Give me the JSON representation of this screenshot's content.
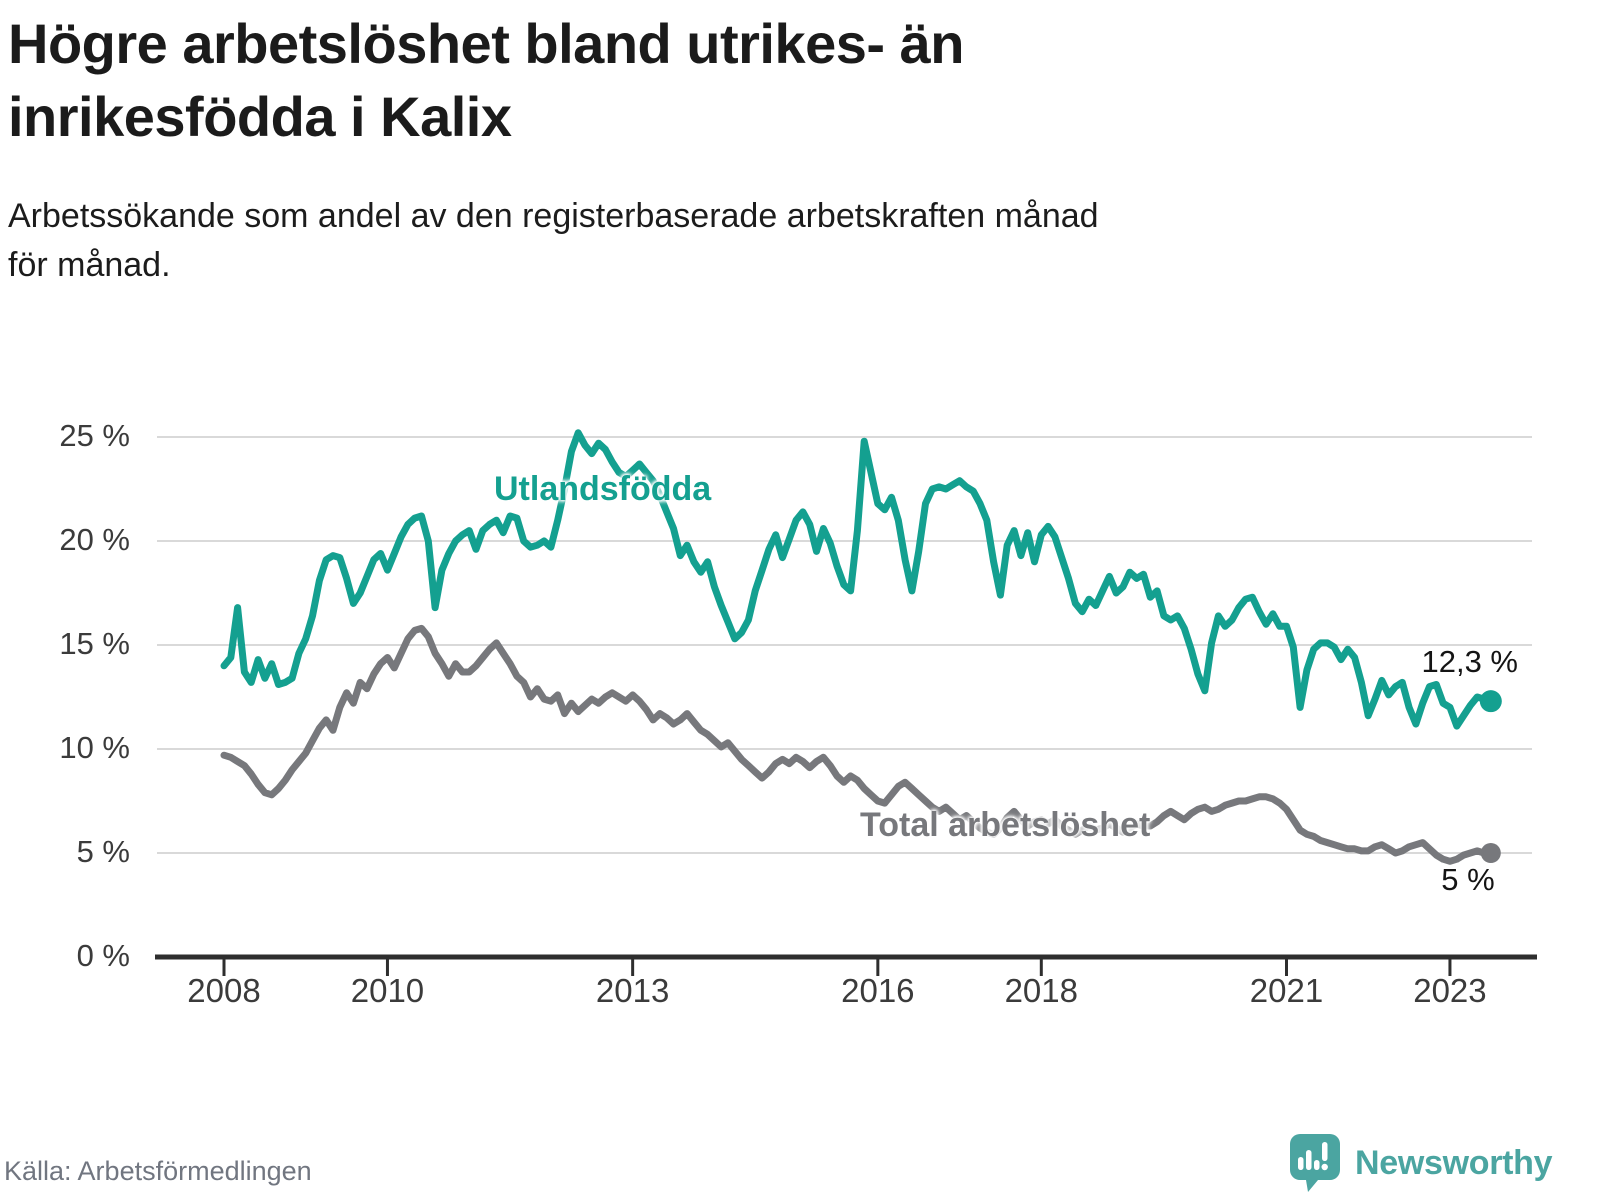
{
  "title": "Högre arbetslöshet bland utrikes- än\ninrikesfödda i Kalix",
  "subtitle": "Arbetssökande som andel av den registerbaserade arbetskraften månad\nför månad.",
  "footer": {
    "source": "Källa: Arbetsförmedlingen",
    "brand_name": "Newsworthy"
  },
  "colors": {
    "background": "#ffffff",
    "title_text": "#1b1b1b",
    "axis_text": "#3b3b3b",
    "gridline": "#d9d9d9",
    "axis_line": "#2e2e2e",
    "teal_series": "#14a090",
    "gray_series": "#77787c",
    "end_label_text": "#141414",
    "source_text": "#717680",
    "brand_teal": "#4ba5a1"
  },
  "chart_data": {
    "type": "line",
    "unit": "percent",
    "frequency": "monthly",
    "start": "2008-01",
    "end": "2023-07",
    "grid": "horizontal",
    "legend_position": "inline-annotations",
    "x_tick_years": [
      2008,
      2010,
      2013,
      2016,
      2018,
      2021,
      2023
    ],
    "x_tick_labels": [
      "2008",
      "2010",
      "2013",
      "2016",
      "2018",
      "2021",
      "2023"
    ],
    "y_tick_values": [
      25,
      20,
      15,
      10,
      5,
      0
    ],
    "y_tick_labels": [
      "25 %",
      "20 %",
      "15 %",
      "10 %",
      "5 %",
      "0 %"
    ],
    "ylim": [
      0,
      26.5
    ],
    "series": [
      {
        "name": "Utlandsfödda",
        "color": "#14a090",
        "end_label": "12,3 %",
        "end_value": 12.3,
        "values": [
          14.0,
          14.4,
          16.8,
          13.7,
          13.2,
          14.3,
          13.4,
          14.1,
          13.1,
          13.2,
          13.4,
          14.6,
          15.3,
          16.4,
          18.1,
          19.1,
          19.3,
          19.2,
          18.2,
          17.0,
          17.5,
          18.3,
          19.1,
          19.4,
          18.6,
          19.4,
          20.2,
          20.8,
          21.1,
          21.2,
          20.0,
          16.8,
          18.6,
          19.4,
          20.0,
          20.3,
          20.5,
          19.6,
          20.5,
          20.8,
          21.0,
          20.4,
          21.2,
          21.1,
          20.0,
          19.7,
          19.8,
          20.0,
          19.7,
          21.0,
          22.5,
          24.3,
          25.2,
          24.6,
          24.2,
          24.7,
          24.4,
          23.8,
          23.3,
          23.1,
          23.4,
          23.7,
          23.3,
          22.9,
          22.2,
          21.4,
          20.6,
          19.3,
          19.8,
          19.0,
          18.5,
          19.0,
          17.8,
          16.9,
          16.1,
          15.3,
          15.6,
          16.2,
          17.6,
          18.6,
          19.6,
          20.3,
          19.2,
          20.1,
          21.0,
          21.4,
          20.8,
          19.5,
          20.6,
          19.9,
          18.8,
          17.9,
          17.6,
          20.5,
          24.8,
          23.3,
          21.8,
          21.5,
          22.1,
          21.0,
          19.1,
          17.6,
          19.5,
          21.8,
          22.5,
          22.6,
          22.5,
          22.7,
          22.9,
          22.6,
          22.4,
          21.8,
          21.0,
          19.0,
          17.4,
          19.8,
          20.5,
          19.3,
          20.4,
          19.0,
          20.3,
          20.7,
          20.2,
          19.2,
          18.2,
          17.0,
          16.6,
          17.2,
          16.9,
          17.6,
          18.3,
          17.5,
          17.8,
          18.5,
          18.2,
          18.4,
          17.3,
          17.6,
          16.4,
          16.2,
          16.4,
          15.8,
          14.8,
          13.6,
          12.8,
          15.1,
          16.4,
          15.9,
          16.2,
          16.8,
          17.2,
          17.3,
          16.6,
          16.0,
          16.5,
          15.9,
          15.9,
          14.9,
          12.0,
          13.8,
          14.8,
          15.1,
          15.1,
          14.9,
          14.3,
          14.8,
          14.4,
          13.2,
          11.6,
          12.4,
          13.3,
          12.6,
          13.0,
          13.2,
          12.0,
          11.2,
          12.2,
          13.0,
          13.1,
          12.2,
          12.0,
          11.1,
          11.6,
          12.1,
          12.5,
          12.4,
          12.3
        ]
      },
      {
        "name": "Total arbetslöshet",
        "color": "#77787c",
        "end_label": "5 %",
        "end_value": 5.0,
        "values": [
          9.7,
          9.6,
          9.4,
          9.2,
          8.8,
          8.3,
          7.9,
          7.8,
          8.1,
          8.5,
          9.0,
          9.4,
          9.8,
          10.4,
          11.0,
          11.4,
          10.9,
          12.0,
          12.7,
          12.2,
          13.2,
          12.9,
          13.6,
          14.1,
          14.4,
          13.9,
          14.6,
          15.3,
          15.7,
          15.8,
          15.4,
          14.6,
          14.1,
          13.5,
          14.1,
          13.7,
          13.7,
          14.0,
          14.4,
          14.8,
          15.1,
          14.6,
          14.1,
          13.5,
          13.2,
          12.5,
          12.9,
          12.4,
          12.3,
          12.6,
          11.7,
          12.2,
          11.8,
          12.1,
          12.4,
          12.2,
          12.5,
          12.7,
          12.5,
          12.3,
          12.6,
          12.3,
          11.9,
          11.4,
          11.7,
          11.5,
          11.2,
          11.4,
          11.7,
          11.3,
          10.9,
          10.7,
          10.4,
          10.1,
          10.3,
          9.9,
          9.5,
          9.2,
          8.9,
          8.6,
          8.9,
          9.3,
          9.5,
          9.3,
          9.6,
          9.4,
          9.1,
          9.4,
          9.6,
          9.2,
          8.7,
          8.4,
          8.7,
          8.5,
          8.1,
          7.8,
          7.5,
          7.4,
          7.8,
          8.2,
          8.4,
          8.1,
          7.8,
          7.5,
          7.2,
          7.0,
          7.2,
          6.9,
          6.6,
          6.8,
          6.5,
          6.2,
          6.0,
          5.9,
          6.2,
          6.7,
          7.0,
          6.6,
          6.3,
          6.5,
          6.6,
          6.4,
          6.6,
          6.3,
          6.1,
          5.9,
          6.1,
          6.3,
          6.1,
          6.2,
          6.4,
          6.2,
          6.0,
          6.2,
          6.4,
          6.3,
          6.3,
          6.5,
          6.8,
          7.0,
          6.8,
          6.6,
          6.9,
          7.1,
          7.2,
          7.0,
          7.1,
          7.3,
          7.4,
          7.5,
          7.5,
          7.6,
          7.7,
          7.7,
          7.6,
          7.4,
          7.1,
          6.6,
          6.1,
          5.9,
          5.8,
          5.6,
          5.5,
          5.4,
          5.3,
          5.2,
          5.2,
          5.1,
          5.1,
          5.3,
          5.4,
          5.2,
          5.0,
          5.1,
          5.3,
          5.4,
          5.5,
          5.2,
          4.9,
          4.7,
          4.6,
          4.7,
          4.9,
          5.0,
          5.1,
          5.0,
          5.0
        ]
      }
    ]
  }
}
